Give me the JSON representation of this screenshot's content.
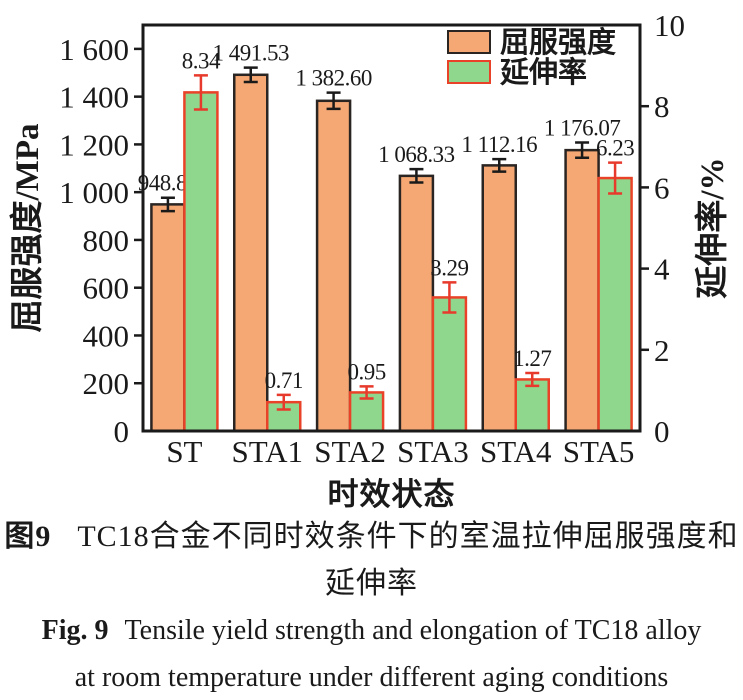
{
  "figure": {
    "background": "#ffffff",
    "axis_color": "#1a1a1a"
  },
  "chart_data": {
    "type": "bar",
    "categories": [
      "ST",
      "STA1",
      "STA2",
      "STA3",
      "STA4",
      "STA5"
    ],
    "series": [
      {
        "name": "屈服强度",
        "axis": "left",
        "fill": "#F5A873",
        "edge": "#2a2522",
        "err_color": "#1a1a1a",
        "values": [
          948.89,
          1491.53,
          1382.6,
          1068.33,
          1112.16,
          1176.07
        ],
        "labels": [
          "948.89",
          "1 491.53",
          "1 382.60",
          "1 068.33",
          "1 112.16",
          "1 176.07"
        ],
        "errors": [
          28,
          30,
          34,
          28,
          26,
          32
        ]
      },
      {
        "name": "延伸率",
        "axis": "right",
        "fill": "#8FD78D",
        "edge": "#EA4228",
        "err_color": "#E83A2C",
        "values": [
          8.34,
          0.71,
          0.95,
          3.29,
          1.27,
          6.23
        ],
        "labels": [
          "8.34",
          "0.71",
          "0.95",
          "3.29",
          "1.27",
          "6.23"
        ],
        "errors": [
          0.42,
          0.18,
          0.15,
          0.37,
          0.16,
          0.38
        ]
      }
    ],
    "left_axis": {
      "title": "屈服强度/MPa",
      "max": 1700,
      "ticks": [
        0,
        200,
        400,
        600,
        800,
        1000,
        1200,
        1400,
        1600
      ],
      "tick_labels": [
        "0",
        "200",
        "400",
        "600",
        "800",
        "1 000",
        "1 200",
        "1 400",
        "1 600"
      ]
    },
    "right_axis": {
      "title": "延伸率/%",
      "max": 10,
      "ticks": [
        0,
        2,
        4,
        6,
        8,
        10
      ],
      "tick_labels": [
        "0",
        "2",
        "4",
        "6",
        "8",
        "10"
      ]
    },
    "xlabel": "时效状态",
    "grid": false,
    "legend_position": "top-center-inside"
  },
  "caption": {
    "zh_prefix": "图9",
    "zh_line1": "TC18合金不同时效条件下的室温拉伸屈服强度和",
    "zh_line2": "延伸率",
    "en_prefix": "Fig. 9",
    "en_line1": "Tensile yield strength and elongation of TC18 alloy",
    "en_line2": "at room temperature under different aging conditions"
  }
}
